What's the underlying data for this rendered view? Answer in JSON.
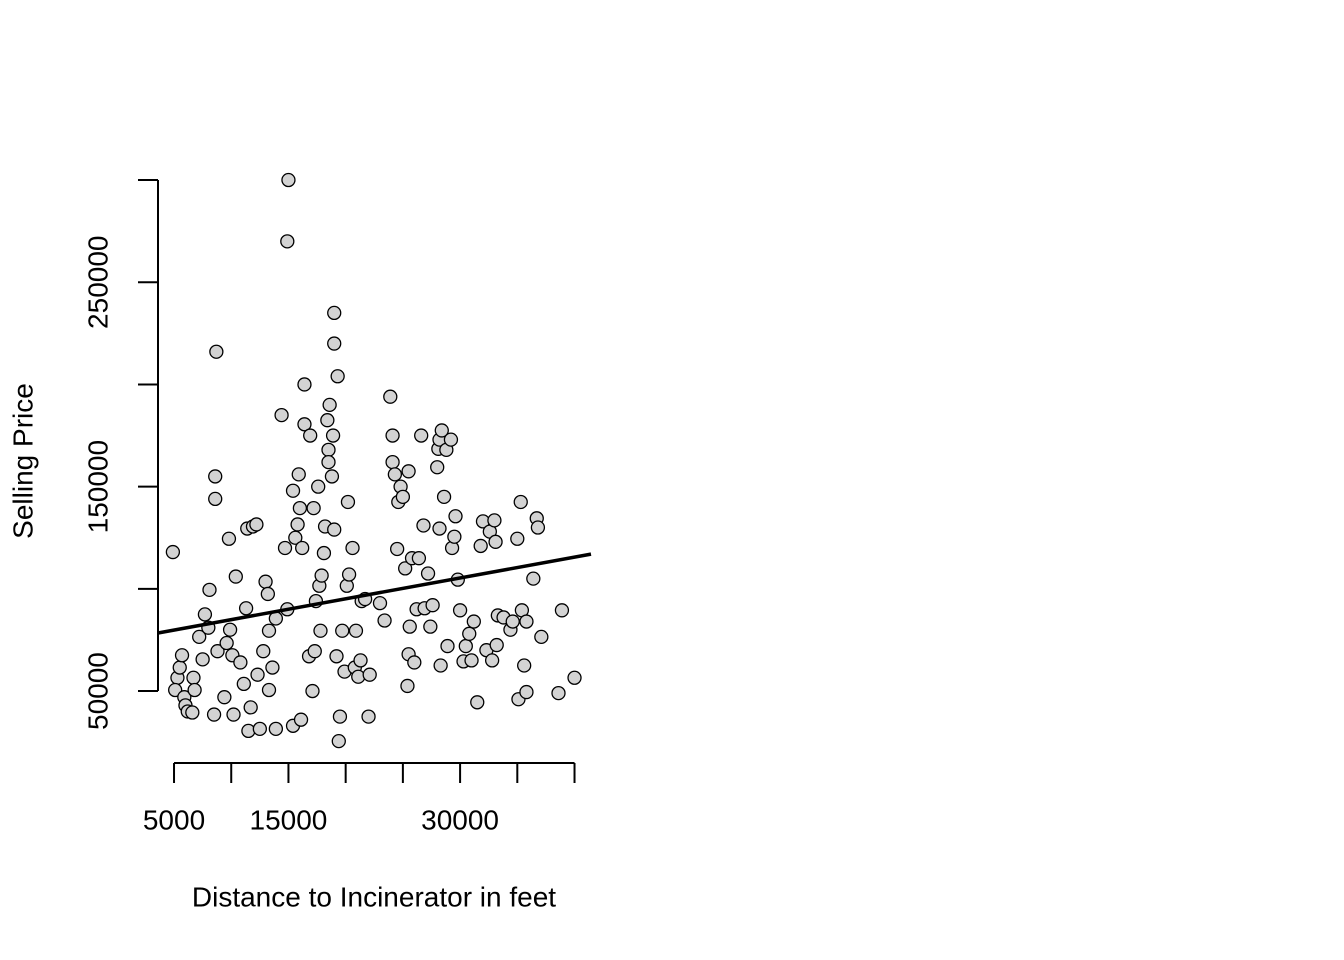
{
  "chart_data": {
    "type": "scatter",
    "x_label": "Distance to Incinerator in feet",
    "y_label": "Selling Price",
    "color": "#d3d3d3",
    "edge_color": "#000000",
    "xlim": [
      3600,
      41440
    ],
    "ylim": [
      14800,
      309800
    ],
    "xticks": [
      5000,
      {
        "value": 10000,
        "label": null
      },
      15000,
      {
        "value": 20000,
        "label": null
      },
      {
        "value": 25000,
        "label": null
      },
      30000,
      {
        "value": 35000,
        "label": null
      },
      {
        "value": 40000,
        "label": null
      }
    ],
    "yticks": [
      50000,
      {
        "value": 100000,
        "label": null
      },
      150000,
      {
        "value": 200000,
        "label": null
      },
      250000,
      {
        "value": 300000,
        "label": null
      }
    ],
    "fit_line": {
      "x": [
        3600,
        41440
      ],
      "y": [
        78400,
        117000
      ],
      "color": "#000000"
    },
    "x": [
      4900,
      5300,
      5100,
      5500,
      5700,
      5900,
      6000,
      6200,
      6600,
      6700,
      6800,
      7200,
      7500,
      7700,
      8000,
      8100,
      8500,
      8600,
      8600,
      8700,
      8800,
      9400,
      9600,
      9800,
      9900,
      10100,
      10200,
      10400,
      10800,
      11100,
      11300,
      11400,
      11500,
      11700,
      11900,
      12200,
      12300,
      12500,
      12800,
      13000,
      13200,
      13300,
      13300,
      13600,
      13900,
      13900,
      14400,
      14700,
      14900,
      14900,
      15000,
      15400,
      15400,
      15600,
      15800,
      15900,
      16000,
      16100,
      16200,
      16400,
      16400,
      16800,
      16900,
      17100,
      17200,
      17300,
      17400,
      17600,
      17700,
      17800,
      17900,
      18100,
      18200,
      18400,
      18500,
      18500,
      18600,
      18800,
      18900,
      19000,
      19000,
      19000,
      19200,
      19300,
      19500,
      19400,
      19700,
      19900,
      20100,
      20200,
      20300,
      20600,
      20800,
      20900,
      21100,
      21300,
      21400,
      21700,
      22000,
      22100,
      23000,
      23400,
      23900,
      24100,
      24100,
      24300,
      24500,
      24600,
      24800,
      25000,
      25200,
      25400,
      25500,
      25500,
      25600,
      25800,
      26000,
      26200,
      26400,
      26600,
      26800,
      26900,
      27200,
      27400,
      27600,
      28000,
      28100,
      28200,
      28200,
      28300,
      28400,
      28600,
      28800,
      28900,
      29200,
      29300,
      29500,
      29600,
      29800,
      30000,
      30300,
      30500,
      30800,
      31000,
      31200,
      31500,
      31800,
      32000,
      32300,
      32600,
      32800,
      33000,
      33100,
      33200,
      33300,
      33800,
      34400,
      34600,
      35000,
      35100,
      35300,
      35400,
      35600,
      35800,
      35800,
      36400,
      36700,
      36800,
      37100,
      38600,
      38900,
      40000
    ],
    "values": [
      118000,
      56500,
      50500,
      61500,
      67500,
      47000,
      43000,
      40000,
      39500,
      56500,
      50500,
      76500,
      65500,
      87500,
      81000,
      99500,
      38500,
      144000,
      155000,
      216000,
      69500,
      47000,
      73500,
      124500,
      80000,
      67500,
      38500,
      106000,
      64000,
      53500,
      90500,
      129500,
      30500,
      42000,
      130500,
      131500,
      58000,
      31500,
      69500,
      103500,
      97500,
      50500,
      79500,
      61500,
      85500,
      31500,
      185000,
      120000,
      90000,
      270000,
      300000,
      148000,
      33000,
      125000,
      131500,
      156000,
      139500,
      36000,
      120000,
      200000,
      180500,
      67000,
      175000,
      50000,
      139500,
      69500,
      94000,
      150000,
      101500,
      79500,
      106500,
      117500,
      130500,
      182500,
      168000,
      162000,
      190000,
      155000,
      175000,
      220000,
      235000,
      129000,
      67000,
      204000,
      37500,
      25500,
      79500,
      59500,
      101500,
      142500,
      107000,
      120000,
      61500,
      79500,
      57000,
      65000,
      94000,
      95000,
      37500,
      58000,
      93000,
      84500,
      194000,
      175000,
      162000,
      156000,
      119500,
      142500,
      150000,
      145000,
      110000,
      52500,
      68000,
      157500,
      81500,
      115000,
      64000,
      90000,
      115000,
      175000,
      131000,
      90500,
      107500,
      81500,
      92000,
      159500,
      168500,
      173000,
      129500,
      62500,
      177500,
      145000,
      168000,
      72000,
      173000,
      120000,
      125500,
      135500,
      104500,
      89500,
      64500,
      72000,
      78000,
      65000,
      84000,
      44500,
      121000,
      133000,
      70000,
      128000,
      65000,
      133500,
      123000,
      72500,
      87000,
      86000,
      80000,
      84000,
      124500,
      46000,
      142500,
      89500,
      62500,
      49500,
      84000,
      105000,
      134500,
      130000,
      76500,
      49000,
      89500,
      56500
    ]
  }
}
